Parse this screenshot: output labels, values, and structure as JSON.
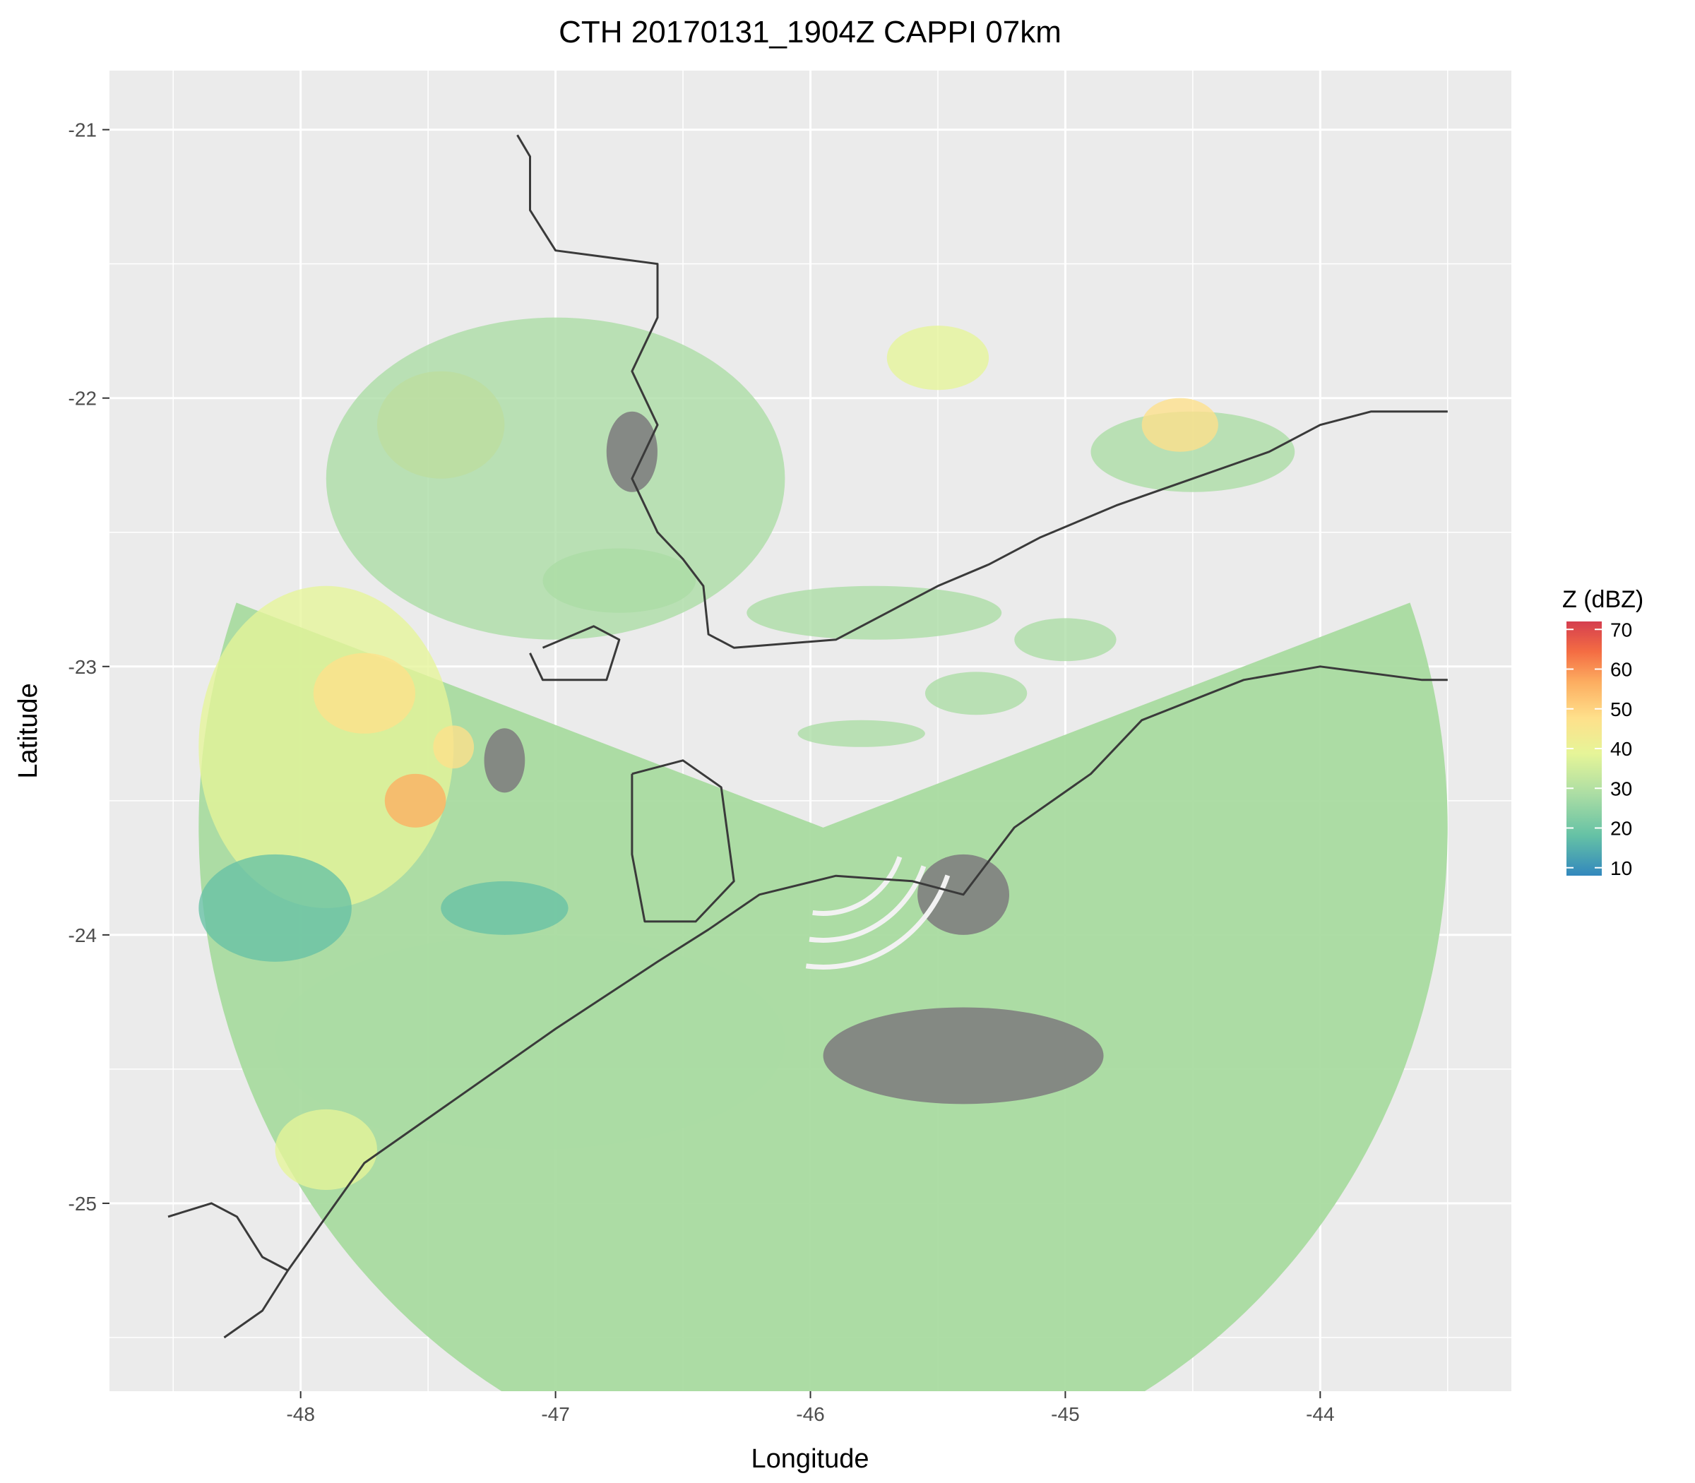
{
  "chart_data": {
    "type": "heatmap",
    "title": "CTH 20170131_1904Z  CAPPI 07km",
    "xlabel": "Longitude",
    "ylabel": "Latitude",
    "xlim": [
      -48.75,
      -43.25
    ],
    "ylim": [
      -25.7,
      -20.78
    ],
    "x_ticks": [
      -48,
      -47,
      -46,
      -45,
      -44
    ],
    "y_ticks": [
      -21,
      -22,
      -23,
      -24,
      -25
    ],
    "x_tick_labels": [
      "-48",
      "-47",
      "-46",
      "-45",
      "-44"
    ],
    "y_tick_labels": [
      "-21",
      "-22",
      "-23",
      "-24",
      "-25"
    ],
    "grid": true,
    "legend": {
      "title": "Z (dBZ)",
      "position": "right",
      "ticks": [
        70,
        60,
        50,
        40,
        30,
        20,
        10
      ],
      "tick_labels": [
        "70",
        "60",
        "50",
        "40",
        "30",
        "20",
        "10"
      ],
      "range": [
        8,
        72
      ]
    },
    "colors": {
      "panel_background": "#ebebeb",
      "grid": "#ffffff",
      "below_threshold": "#7f7f7f",
      "coastline": "#3a3a3a",
      "scale": [
        "#3288bd",
        "#66c2a5",
        "#abdda4",
        "#e6f598",
        "#fee08b",
        "#fdae61",
        "#f46d43",
        "#d53e4f"
      ]
    },
    "radar": {
      "center_lon": -45.95,
      "center_lat": -23.6,
      "max_range_deg": 2.45,
      "sector_deg": [
        -20,
        200
      ]
    },
    "echo_regions": [
      {
        "lon": -47.9,
        "lat": -23.3,
        "rx": 0.5,
        "ry": 0.6,
        "dbz": 38
      },
      {
        "lon": -47.55,
        "lat": -23.5,
        "rx": 0.12,
        "ry": 0.1,
        "dbz": 55
      },
      {
        "lon": -47.75,
        "lat": -23.1,
        "rx": 0.2,
        "ry": 0.15,
        "dbz": 45
      },
      {
        "lon": -47.45,
        "lat": -22.1,
        "rx": 0.25,
        "ry": 0.2,
        "dbz": 40
      },
      {
        "lon": -47.4,
        "lat": -23.3,
        "rx": 0.08,
        "ry": 0.08,
        "dbz": 48
      },
      {
        "lon": -47.0,
        "lat": -22.3,
        "rx": 0.9,
        "ry": 0.6,
        "dbz": 28
      },
      {
        "lon": -47.1,
        "lat": -24.4,
        "rx": 1.0,
        "ry": 0.4,
        "dbz": 30
      },
      {
        "lon": -47.9,
        "lat": -24.8,
        "rx": 0.2,
        "ry": 0.15,
        "dbz": 38
      },
      {
        "lon": -48.1,
        "lat": -23.9,
        "rx": 0.3,
        "ry": 0.2,
        "dbz": 20
      },
      {
        "lon": -47.2,
        "lat": -23.9,
        "rx": 0.25,
        "ry": 0.1,
        "dbz": 14
      },
      {
        "lon": -46.75,
        "lat": -22.68,
        "rx": 0.3,
        "ry": 0.12,
        "dbz": 30
      },
      {
        "lon": -45.75,
        "lat": -22.8,
        "rx": 0.5,
        "ry": 0.1,
        "dbz": 24
      },
      {
        "lon": -45.5,
        "lat": -21.85,
        "rx": 0.2,
        "ry": 0.12,
        "dbz": 35
      },
      {
        "lon": -44.5,
        "lat": -22.2,
        "rx": 0.4,
        "ry": 0.15,
        "dbz": 28
      },
      {
        "lon": -44.55,
        "lat": -22.1,
        "rx": 0.15,
        "ry": 0.1,
        "dbz": 40
      },
      {
        "lon": -45.0,
        "lat": -22.9,
        "rx": 0.2,
        "ry": 0.08,
        "dbz": 25
      },
      {
        "lon": -45.35,
        "lat": -23.1,
        "rx": 0.2,
        "ry": 0.08,
        "dbz": 22
      },
      {
        "lon": -45.8,
        "lat": -23.25,
        "rx": 0.25,
        "ry": 0.05,
        "dbz": 30
      }
    ],
    "low_echo_regions": [
      {
        "lon": -45.4,
        "lat": -24.45,
        "rx": 0.55,
        "ry": 0.18
      },
      {
        "lon": -45.4,
        "lat": -23.85,
        "rx": 0.18,
        "ry": 0.15
      },
      {
        "lon": -46.7,
        "lat": -22.2,
        "rx": 0.1,
        "ry": 0.15
      },
      {
        "lon": -47.2,
        "lat": -23.35,
        "rx": 0.08,
        "ry": 0.12
      }
    ],
    "coastline_segments": [
      [
        [
          -47.15,
          -21.02
        ],
        [
          -47.1,
          -21.1
        ],
        [
          -47.1,
          -21.3
        ],
        [
          -47.0,
          -21.45
        ],
        [
          -46.6,
          -21.5
        ],
        [
          -46.6,
          -21.7
        ],
        [
          -46.7,
          -21.9
        ],
        [
          -46.6,
          -22.1
        ],
        [
          -46.7,
          -22.3
        ],
        [
          -46.6,
          -22.5
        ],
        [
          -46.5,
          -22.6
        ],
        [
          -46.42,
          -22.7
        ],
        [
          -46.4,
          -22.88
        ],
        [
          -46.3,
          -22.93
        ],
        [
          -45.9,
          -22.9
        ],
        [
          -45.7,
          -22.8
        ],
        [
          -45.5,
          -22.7
        ],
        [
          -45.3,
          -22.62
        ],
        [
          -45.1,
          -22.52
        ],
        [
          -44.8,
          -22.4
        ],
        [
          -44.5,
          -22.3
        ],
        [
          -44.2,
          -22.2
        ],
        [
          -44.0,
          -22.1
        ],
        [
          -43.8,
          -22.05
        ],
        [
          -43.5,
          -22.05
        ]
      ],
      [
        [
          -47.05,
          -22.93
        ],
        [
          -46.85,
          -22.85
        ],
        [
          -46.75,
          -22.9
        ],
        [
          -46.8,
          -23.05
        ],
        [
          -47.05,
          -23.05
        ],
        [
          -47.1,
          -22.95
        ]
      ],
      [
        [
          -46.7,
          -23.4
        ],
        [
          -46.5,
          -23.35
        ],
        [
          -46.35,
          -23.45
        ],
        [
          -46.3,
          -23.8
        ],
        [
          -46.45,
          -23.95
        ],
        [
          -46.65,
          -23.95
        ],
        [
          -46.7,
          -23.7
        ],
        [
          -46.7,
          -23.4
        ]
      ],
      [
        [
          -48.52,
          -25.05
        ],
        [
          -48.35,
          -25.0
        ],
        [
          -48.25,
          -25.05
        ],
        [
          -48.15,
          -25.2
        ],
        [
          -48.05,
          -25.25
        ],
        [
          -47.9,
          -25.05
        ],
        [
          -47.75,
          -24.85
        ],
        [
          -47.45,
          -24.65
        ],
        [
          -47.0,
          -24.35
        ],
        [
          -46.6,
          -24.1
        ],
        [
          -46.4,
          -23.98
        ],
        [
          -46.2,
          -23.85
        ],
        [
          -45.9,
          -23.78
        ],
        [
          -45.6,
          -23.8
        ],
        [
          -45.4,
          -23.85
        ],
        [
          -45.2,
          -23.6
        ],
        [
          -44.9,
          -23.4
        ],
        [
          -44.7,
          -23.2
        ],
        [
          -44.3,
          -23.05
        ],
        [
          -44.0,
          -23.0
        ],
        [
          -43.6,
          -23.05
        ],
        [
          -43.5,
          -23.05
        ]
      ],
      [
        [
          -48.3,
          -25.5
        ],
        [
          -48.15,
          -25.4
        ],
        [
          -48.05,
          -25.25
        ]
      ]
    ]
  }
}
